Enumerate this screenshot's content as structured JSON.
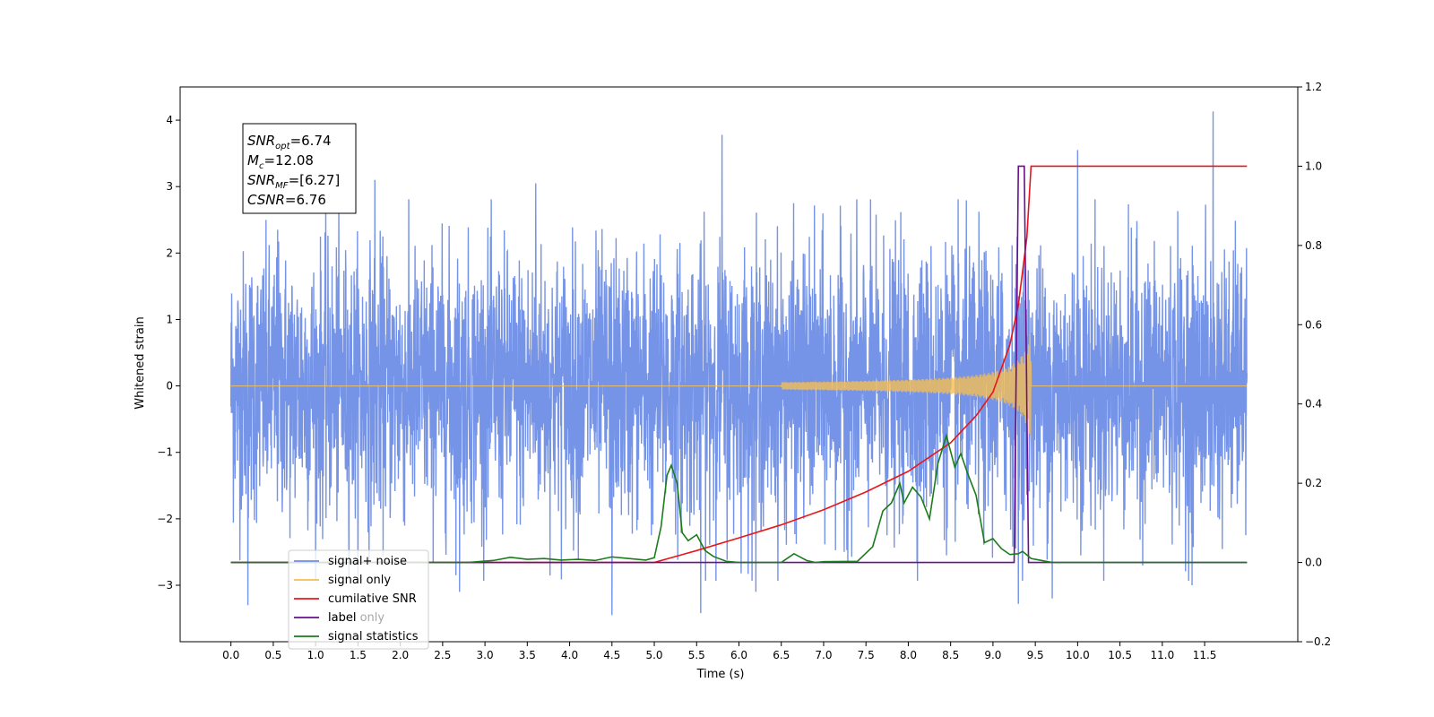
{
  "chart_data": {
    "type": "line",
    "xlabel": "Time (s)",
    "ylabel": "Whitened strain",
    "xlim": [
      -0.6,
      12.6
    ],
    "ylim": [
      -3.85,
      4.5
    ],
    "y2lim": [
      -0.2,
      1.2
    ],
    "x_ticks": [
      0.0,
      0.5,
      1.0,
      1.5,
      2.0,
      2.5,
      3.0,
      3.5,
      4.0,
      4.5,
      5.0,
      5.5,
      6.0,
      6.5,
      7.0,
      7.5,
      8.0,
      8.5,
      9.0,
      9.5,
      10.0,
      10.5,
      11.0,
      11.5
    ],
    "x_tick_labels": [
      "0.0",
      "0.5",
      "1.0",
      "1.5",
      "2.0",
      "2.5",
      "3.0",
      "3.5",
      "4.0",
      "4.5",
      "5.0",
      "5.5",
      "6.0",
      "6.5",
      "7.0",
      "7.5",
      "8.0",
      "8.5",
      "9.0",
      "9.5",
      "10.0",
      "10.5",
      "11.0",
      "11.5"
    ],
    "y_ticks": [
      -3,
      -2,
      -1,
      0,
      1,
      2,
      3,
      4
    ],
    "y_tick_labels": [
      "−3",
      "−2",
      "−1",
      "0",
      "1",
      "2",
      "3",
      "4"
    ],
    "y2_ticks": [
      -0.2,
      0.0,
      0.2,
      0.4,
      0.6,
      0.8,
      1.0,
      1.2
    ],
    "y2_tick_labels": [
      "−0.2",
      "0.0",
      "0.2",
      "0.4",
      "0.6",
      "0.8",
      "1.0",
      "1.2"
    ],
    "grid": false,
    "legend_position": "lower-left",
    "annotation": [
      {
        "sym": "SNR",
        "sub": "opt",
        "value": "=6.74"
      },
      {
        "sym": "M",
        "sub": "c",
        "value": "=12.08"
      },
      {
        "sym": "SNR",
        "sub": "MF",
        "value": "=[6.27]"
      },
      {
        "sym": "CSNR",
        "sub": "",
        "value": "=6.76"
      }
    ],
    "series": [
      {
        "name": "signal+ noise",
        "color": "#6f8ee6",
        "axis": "left",
        "kind": "noise",
        "x_range": [
          0.0,
          12.0
        ],
        "noise_sd": 1.0,
        "y_min": -3.45,
        "y_max": 4.13,
        "peaks": [
          [
            11.6,
            4.13
          ],
          [
            5.8,
            3.78
          ],
          [
            10.0,
            3.55
          ],
          [
            3.6,
            3.05
          ],
          [
            1.7,
            3.1
          ],
          [
            0.55,
            2.35
          ],
          [
            4.5,
            -3.45
          ],
          [
            5.55,
            -3.42
          ],
          [
            9.3,
            -3.28
          ],
          [
            0.2,
            -3.3
          ],
          [
            6.2,
            -3.1
          ],
          [
            2.7,
            -3.1
          ],
          [
            9.7,
            -3.2
          ],
          [
            11.35,
            -3.0
          ]
        ]
      },
      {
        "name": "signal only",
        "color": "#f5bd55",
        "axis": "left",
        "kind": "chirp",
        "start": 6.5,
        "merger": 9.45,
        "peak_amplitude": 0.88
      },
      {
        "name": "cumilative SNR",
        "color": "#e8161b",
        "axis": "right",
        "x": [
          0.0,
          5.0,
          5.5,
          6.0,
          6.5,
          7.0,
          7.5,
          8.0,
          8.5,
          8.8,
          9.0,
          9.2,
          9.3,
          9.4,
          9.45,
          12.0
        ],
        "y": [
          0.0,
          0.0,
          0.03,
          0.062,
          0.095,
          0.133,
          0.178,
          0.23,
          0.302,
          0.37,
          0.43,
          0.55,
          0.65,
          0.82,
          1.0,
          1.0
        ]
      },
      {
        "name": "label",
        "color": "#6a0f8e",
        "axis": "right",
        "x": [
          0.0,
          9.25,
          9.3,
          9.37,
          9.42,
          12.0
        ],
        "y": [
          0.0,
          0.0,
          1.0,
          1.0,
          0.0,
          0.0
        ]
      },
      {
        "name": "label only",
        "color": "#8a8a8a",
        "axis": "right",
        "legend_only": true
      },
      {
        "name": "signal statistics",
        "color": "#1b7c1b",
        "axis": "right",
        "x": [
          0.0,
          2.8,
          3.1,
          3.3,
          3.5,
          3.7,
          3.9,
          4.1,
          4.3,
          4.5,
          4.7,
          4.9,
          5.0,
          5.08,
          5.15,
          5.2,
          5.27,
          5.33,
          5.4,
          5.5,
          5.6,
          5.7,
          5.85,
          6.0,
          6.5,
          6.65,
          6.8,
          6.9,
          7.0,
          7.4,
          7.58,
          7.7,
          7.8,
          7.9,
          7.95,
          8.05,
          8.15,
          8.25,
          8.35,
          8.45,
          8.55,
          8.62,
          8.7,
          8.8,
          8.9,
          9.0,
          9.1,
          9.2,
          9.3,
          9.35,
          9.45,
          9.55,
          9.7,
          12.0
        ],
        "y": [
          0.0,
          0.0,
          0.005,
          0.013,
          0.008,
          0.01,
          0.006,
          0.008,
          0.005,
          0.014,
          0.01,
          0.006,
          0.012,
          0.09,
          0.22,
          0.245,
          0.2,
          0.075,
          0.055,
          0.07,
          0.03,
          0.015,
          0.003,
          0.0,
          0.0,
          0.022,
          0.005,
          0.0,
          0.002,
          0.003,
          0.04,
          0.13,
          0.15,
          0.2,
          0.15,
          0.19,
          0.165,
          0.11,
          0.25,
          0.32,
          0.24,
          0.275,
          0.225,
          0.17,
          0.05,
          0.06,
          0.035,
          0.02,
          0.022,
          0.028,
          0.01,
          0.006,
          0.0,
          0.0
        ]
      }
    ]
  }
}
